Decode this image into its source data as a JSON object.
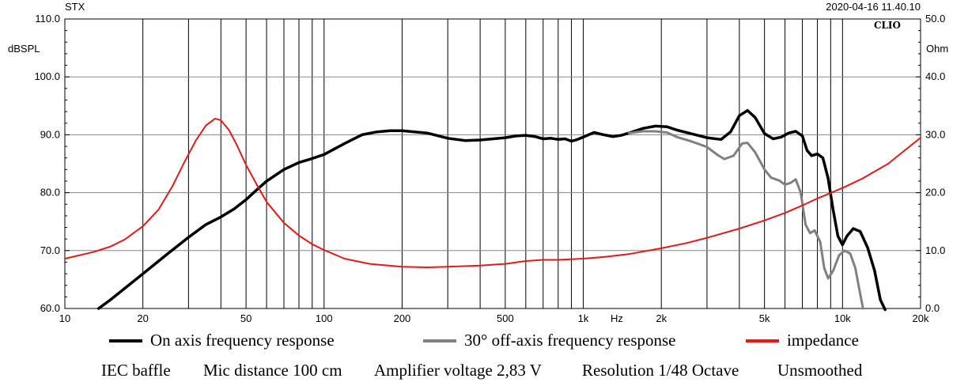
{
  "header": {
    "left": "STX",
    "right": "2020-04-16 11.40.10",
    "logo": "CLIO",
    "left_unit": "dBSPL",
    "right_unit": "Ohm",
    "x_unit": "Hz"
  },
  "chart_data": {
    "type": "line",
    "title": "",
    "xscale": "log",
    "xlim": [
      10,
      20000
    ],
    "ylim_left": [
      60,
      110
    ],
    "ylim_right": [
      0,
      50
    ],
    "ylabel_left": "dBSPL",
    "ylabel_right": "Ohm",
    "xlabel": "Hz",
    "grid": true,
    "x_tick_labels": [
      {
        "value": 10,
        "label": "10"
      },
      {
        "value": 20,
        "label": "20"
      },
      {
        "value": 50,
        "label": "50"
      },
      {
        "value": 100,
        "label": "100"
      },
      {
        "value": 200,
        "label": "200"
      },
      {
        "value": 500,
        "label": "500"
      },
      {
        "value": 1000,
        "label": "1k"
      },
      {
        "value": 2000,
        "label": "2k"
      },
      {
        "value": 5000,
        "label": "5k"
      },
      {
        "value": 10000,
        "label": "10k"
      },
      {
        "value": 20000,
        "label": "20k"
      }
    ],
    "y_left_ticks": [
      {
        "value": 60,
        "label": "60.0"
      },
      {
        "value": 70,
        "label": "70.0"
      },
      {
        "value": 80,
        "label": "80.0"
      },
      {
        "value": 90,
        "label": "90.0"
      },
      {
        "value": 100,
        "label": "100.0"
      },
      {
        "value": 110,
        "label": "110.0"
      }
    ],
    "y_right_ticks": [
      {
        "value": 0,
        "label": "0.0"
      },
      {
        "value": 10,
        "label": "10.0"
      },
      {
        "value": 20,
        "label": "20.0"
      },
      {
        "value": 30,
        "label": "30.0"
      },
      {
        "value": 40,
        "label": "40.0"
      },
      {
        "value": 50,
        "label": "50.0"
      }
    ],
    "series": [
      {
        "name": "On axis frequency response",
        "color": "#000000",
        "axis": "left",
        "points": [
          [
            13.5,
            60
          ],
          [
            15,
            61.5
          ],
          [
            20,
            66
          ],
          [
            25,
            69.5
          ],
          [
            30,
            72.3
          ],
          [
            35,
            74.5
          ],
          [
            40,
            75.8
          ],
          [
            45,
            77.2
          ],
          [
            50,
            78.8
          ],
          [
            55,
            80.5
          ],
          [
            60,
            82
          ],
          [
            70,
            84
          ],
          [
            80,
            85.2
          ],
          [
            90,
            85.9
          ],
          [
            100,
            86.6
          ],
          [
            120,
            88.5
          ],
          [
            140,
            90
          ],
          [
            160,
            90.5
          ],
          [
            180,
            90.7
          ],
          [
            200,
            90.7
          ],
          [
            250,
            90.3
          ],
          [
            300,
            89.4
          ],
          [
            350,
            89
          ],
          [
            400,
            89.1
          ],
          [
            500,
            89.5
          ],
          [
            550,
            89.8
          ],
          [
            600,
            89.9
          ],
          [
            650,
            89.7
          ],
          [
            700,
            89.3
          ],
          [
            750,
            89.4
          ],
          [
            800,
            89.2
          ],
          [
            850,
            89.3
          ],
          [
            900,
            88.9
          ],
          [
            950,
            89.2
          ],
          [
            1000,
            89.6
          ],
          [
            1100,
            90.4
          ],
          [
            1200,
            90
          ],
          [
            1300,
            89.7
          ],
          [
            1400,
            89.9
          ],
          [
            1500,
            90.3
          ],
          [
            1700,
            91.1
          ],
          [
            1900,
            91.5
          ],
          [
            2100,
            91.4
          ],
          [
            2300,
            90.8
          ],
          [
            2600,
            90.2
          ],
          [
            3000,
            89.5
          ],
          [
            3400,
            89.2
          ],
          [
            3700,
            90.5
          ],
          [
            4000,
            93.3
          ],
          [
            4300,
            94.2
          ],
          [
            4600,
            93
          ],
          [
            5000,
            90.2
          ],
          [
            5400,
            89.3
          ],
          [
            5800,
            89.6
          ],
          [
            6200,
            90.3
          ],
          [
            6600,
            90.6
          ],
          [
            7000,
            89.8
          ],
          [
            7300,
            87.3
          ],
          [
            7600,
            86.4
          ],
          [
            8000,
            86.7
          ],
          [
            8400,
            86
          ],
          [
            8800,
            82.5
          ],
          [
            9200,
            77
          ],
          [
            9600,
            72.5
          ],
          [
            10000,
            71
          ],
          [
            10400,
            72.5
          ],
          [
            11000,
            73.8
          ],
          [
            11700,
            73.3
          ],
          [
            12500,
            70.5
          ],
          [
            13300,
            66.5
          ],
          [
            14000,
            61.5
          ],
          [
            14600,
            59.8
          ]
        ]
      },
      {
        "name": "30° off-axis frequency response",
        "color": "#808080",
        "axis": "left",
        "points": [
          [
            1500,
            90.3
          ],
          [
            1700,
            90.6
          ],
          [
            1900,
            90.6
          ],
          [
            2100,
            90.4
          ],
          [
            2300,
            89.6
          ],
          [
            2600,
            88.9
          ],
          [
            3000,
            87.9
          ],
          [
            3300,
            86.5
          ],
          [
            3500,
            85.8
          ],
          [
            3800,
            86.4
          ],
          [
            4100,
            88.5
          ],
          [
            4300,
            88.6
          ],
          [
            4600,
            87
          ],
          [
            5000,
            84
          ],
          [
            5300,
            82.6
          ],
          [
            5700,
            82.1
          ],
          [
            6000,
            81.4
          ],
          [
            6300,
            81.7
          ],
          [
            6600,
            82.3
          ],
          [
            6900,
            80
          ],
          [
            7200,
            74.5
          ],
          [
            7500,
            73
          ],
          [
            7800,
            73.5
          ],
          [
            8200,
            71.5
          ],
          [
            8500,
            67
          ],
          [
            8800,
            65.2
          ],
          [
            9200,
            66.5
          ],
          [
            9700,
            69.2
          ],
          [
            10200,
            70
          ],
          [
            10700,
            69.5
          ],
          [
            11200,
            67
          ],
          [
            11700,
            62.5
          ],
          [
            12000,
            60
          ]
        ]
      },
      {
        "name": "impedance",
        "color": "#e41a1a",
        "axis": "right",
        "points": [
          [
            10,
            8.6
          ],
          [
            13,
            9.8
          ],
          [
            15,
            10.7
          ],
          [
            17,
            11.9
          ],
          [
            20,
            14.2
          ],
          [
            23,
            17.1
          ],
          [
            26,
            21.1
          ],
          [
            29,
            25.4
          ],
          [
            32,
            29
          ],
          [
            35,
            31.6
          ],
          [
            38,
            32.8
          ],
          [
            40,
            32.5
          ],
          [
            43,
            30.8
          ],
          [
            46,
            28.3
          ],
          [
            50,
            24.8
          ],
          [
            55,
            21.4
          ],
          [
            60,
            18.4
          ],
          [
            70,
            14.8
          ],
          [
            80,
            12.6
          ],
          [
            90,
            11.1
          ],
          [
            100,
            10.1
          ],
          [
            120,
            8.6
          ],
          [
            150,
            7.7
          ],
          [
            200,
            7.2
          ],
          [
            250,
            7.1
          ],
          [
            300,
            7.2
          ],
          [
            400,
            7.4
          ],
          [
            500,
            7.7
          ],
          [
            600,
            8.2
          ],
          [
            700,
            8.4
          ],
          [
            800,
            8.4
          ],
          [
            1000,
            8.6
          ],
          [
            1200,
            8.9
          ],
          [
            1500,
            9.4
          ],
          [
            2000,
            10.4
          ],
          [
            2500,
            11.3
          ],
          [
            3000,
            12.2
          ],
          [
            4000,
            13.8
          ],
          [
            5000,
            15.2
          ],
          [
            6000,
            16.5
          ],
          [
            7000,
            17.8
          ],
          [
            8000,
            19
          ],
          [
            10000,
            20.8
          ],
          [
            12000,
            22.5
          ],
          [
            15000,
            25
          ],
          [
            20000,
            29.5
          ]
        ]
      }
    ]
  },
  "legend": {
    "items": [
      {
        "label": "On axis frequency response",
        "color": "#000000"
      },
      {
        "label": "30° off-axis frequency response",
        "color": "#808080"
      },
      {
        "label": "impedance",
        "color": "#e41a1a"
      }
    ]
  },
  "notes": [
    "IEC baffle",
    "Mic distance 100 cm",
    "Amplifier voltage 2,83 V",
    "Resolution 1/48 Octave",
    "Unsmoothed"
  ]
}
